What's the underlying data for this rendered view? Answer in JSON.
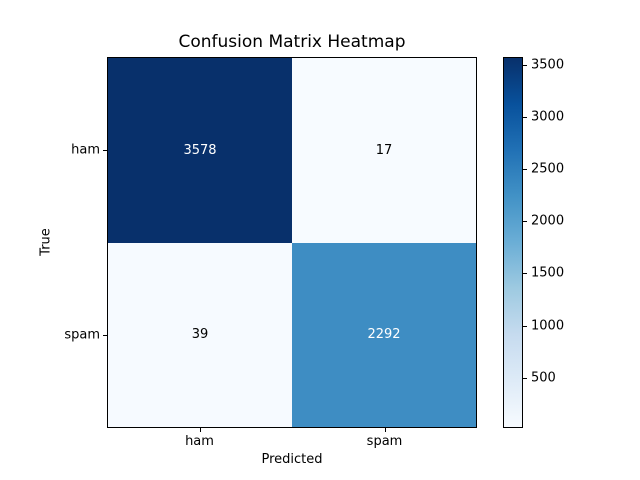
{
  "chart_data": {
    "type": "heatmap",
    "title": "Confusion Matrix Heatmap",
    "xlabel": "Predicted",
    "ylabel": "True",
    "x_categories": [
      "ham",
      "spam"
    ],
    "y_categories": [
      "ham",
      "spam"
    ],
    "matrix": [
      [
        3578,
        17
      ],
      [
        39,
        2292
      ]
    ],
    "cell_annotations": [
      [
        "3578",
        "17"
      ],
      [
        "39",
        "2292"
      ]
    ],
    "vmin": 17,
    "vmax": 3578,
    "colormap": "Blues",
    "colorbar_ticks": [
      500,
      1000,
      1500,
      2000,
      2500,
      3000,
      3500
    ],
    "colorbar_position": "right",
    "grid": false,
    "legend": "none"
  },
  "style": {
    "background": "#ffffff",
    "spine_color": "#000000",
    "cell_colors": [
      [
        "#08306b",
        "#f7fbff"
      ],
      [
        "#f6faff",
        "#3e8dc3"
      ]
    ],
    "cell_text_colors": [
      [
        "#ffffff",
        "#000000"
      ],
      [
        "#000000",
        "#ffffff"
      ]
    ],
    "colormap_stops": [
      "#f7fbff",
      "#deebf7",
      "#c6dbef",
      "#9ecae1",
      "#6baed6",
      "#4292c6",
      "#2171b5",
      "#08519c",
      "#08306b"
    ]
  }
}
